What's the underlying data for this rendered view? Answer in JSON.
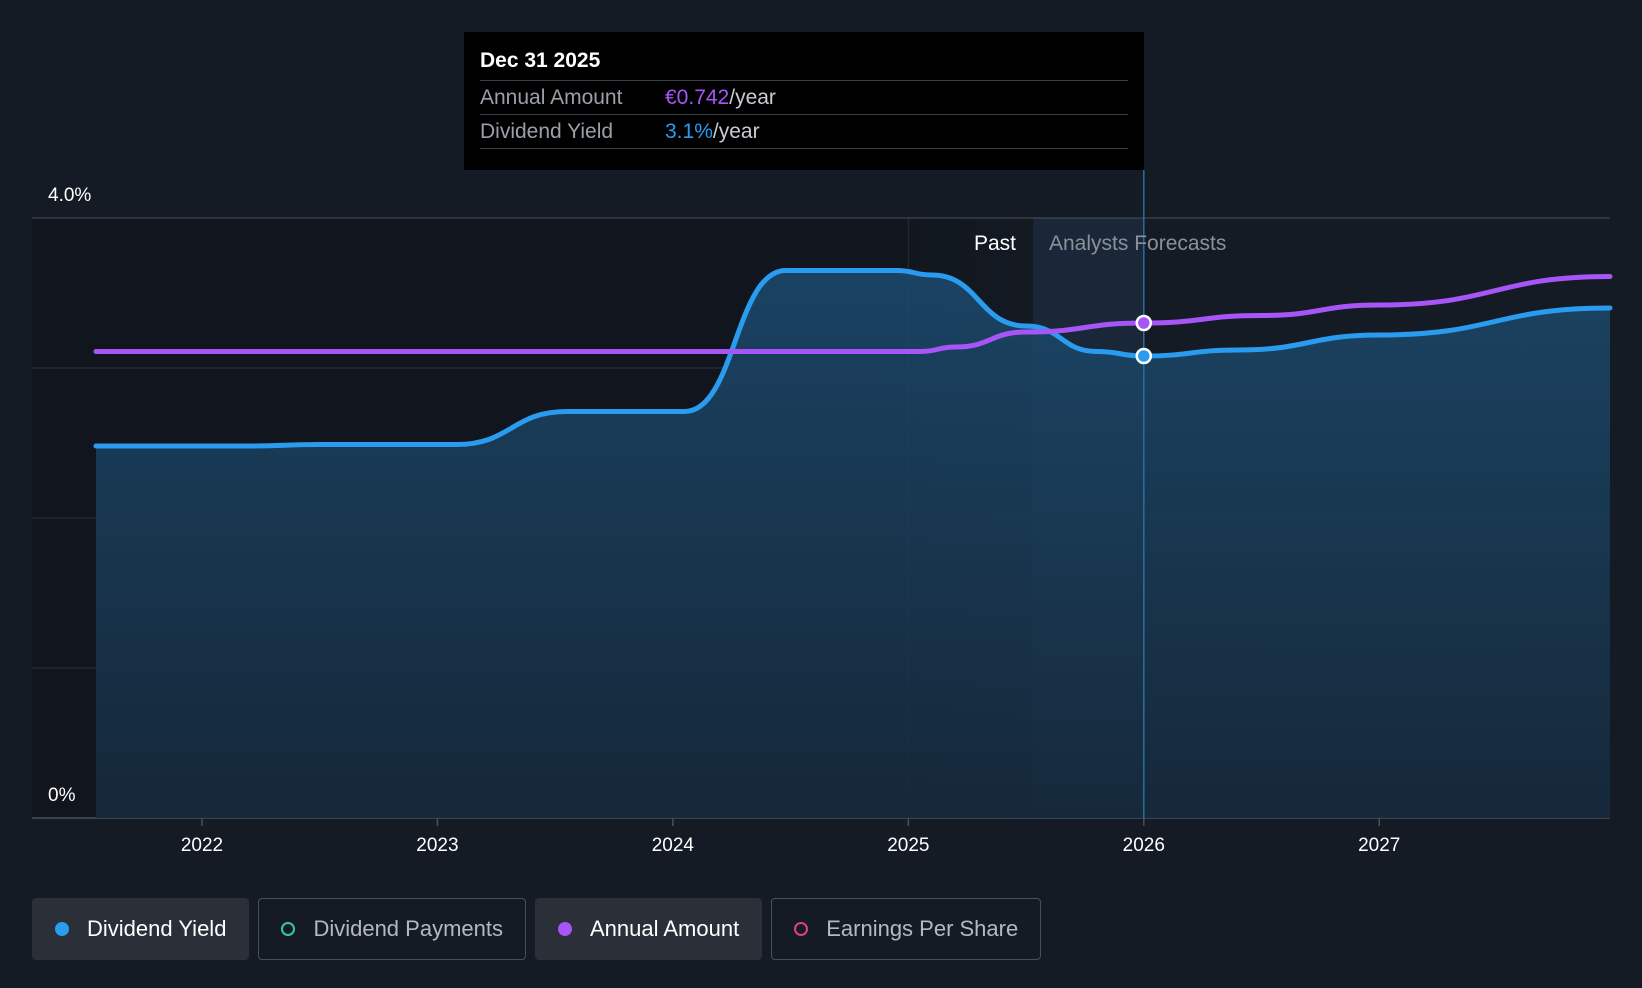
{
  "tooltip": {
    "date": "Dec 31 2025",
    "annual_amount_label": "Annual Amount",
    "annual_amount_value": "€0.742",
    "annual_amount_unit": "/year",
    "dividend_yield_label": "Dividend Yield",
    "dividend_yield_value": "3.1%",
    "dividend_yield_unit": "/year"
  },
  "regions": {
    "past_label": "Past",
    "forecast_label": "Analysts Forecasts"
  },
  "legend": [
    {
      "label": "Dividend Yield",
      "color": "#2a9cf0",
      "active": true
    },
    {
      "label": "Dividend Payments",
      "color": "#3fc1b0",
      "active": false
    },
    {
      "label": "Annual Amount",
      "color": "#a855f7",
      "active": true
    },
    {
      "label": "Earnings Per Share",
      "color": "#e0407a",
      "active": false
    }
  ],
  "chart_data": {
    "type": "line",
    "title": "",
    "xlabel": "",
    "ylabel": "",
    "y_axis_label_max": "4.0%",
    "y_axis_label_min": "0%",
    "ylim": [
      0,
      4.0
    ],
    "xlim": [
      2021.55,
      2027.98
    ],
    "x_ticks": [
      2022,
      2023,
      2024,
      2025,
      2026,
      2027
    ],
    "x_tick_labels": [
      "2022",
      "2023",
      "2024",
      "2025",
      "2026",
      "2027"
    ],
    "y_gridlines": [
      0,
      1.0,
      2.0,
      3.0,
      4.0
    ],
    "past_region": [
      2025.0,
      2025.53
    ],
    "forecast_region": [
      2025.53,
      2026.0
    ],
    "highlight_x": 2026.0,
    "series": [
      {
        "name": "Dividend Yield",
        "color": "#2a9cf0",
        "fill": true,
        "points": [
          [
            2021.55,
            2.48
          ],
          [
            2022.2,
            2.48
          ],
          [
            2022.5,
            2.49
          ],
          [
            2023.08,
            2.49
          ],
          [
            2023.55,
            2.71
          ],
          [
            2024.05,
            2.71
          ],
          [
            2024.48,
            3.65
          ],
          [
            2024.95,
            3.65
          ],
          [
            2025.1,
            3.62
          ],
          [
            2025.5,
            3.28
          ],
          [
            2025.8,
            3.11
          ],
          [
            2026.0,
            3.08
          ],
          [
            2026.4,
            3.12
          ],
          [
            2027.0,
            3.22
          ],
          [
            2027.98,
            3.4
          ]
        ]
      },
      {
        "name": "Annual Amount",
        "color": "#a855f7",
        "fill": false,
        "points": [
          [
            2021.55,
            3.11
          ],
          [
            2025.05,
            3.11
          ],
          [
            2025.2,
            3.14
          ],
          [
            2025.5,
            3.24
          ],
          [
            2026.0,
            3.3
          ],
          [
            2026.5,
            3.35
          ],
          [
            2027.0,
            3.42
          ],
          [
            2027.98,
            3.61
          ]
        ]
      }
    ],
    "highlight_points": [
      {
        "series": "Annual Amount",
        "x": 2026.0,
        "y": 3.3
      },
      {
        "series": "Dividend Yield",
        "x": 2026.0,
        "y": 3.08
      }
    ]
  }
}
